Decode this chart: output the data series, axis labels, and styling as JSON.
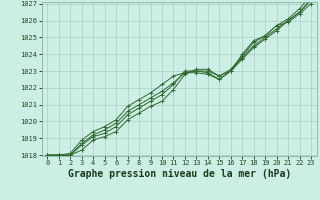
{
  "title": "Graphe pression niveau de la mer (hPa)",
  "x_hours": [
    0,
    1,
    2,
    3,
    4,
    5,
    6,
    7,
    8,
    9,
    10,
    11,
    12,
    13,
    14,
    15,
    16,
    17,
    18,
    19,
    20,
    21,
    22,
    23
  ],
  "line1": [
    1018.0,
    1018.0,
    1018.0,
    1018.6,
    1019.1,
    1019.3,
    1019.7,
    1020.4,
    1020.8,
    1021.2,
    1021.6,
    1022.2,
    1023.0,
    1023.0,
    1022.9,
    1022.5,
    1023.0,
    1023.8,
    1024.5,
    1025.0,
    1025.5,
    1026.0,
    1026.5,
    1027.2
  ],
  "line2": [
    1018.0,
    1018.0,
    1018.1,
    1018.9,
    1019.4,
    1019.7,
    1020.1,
    1020.9,
    1021.3,
    1021.7,
    1022.2,
    1022.7,
    1022.9,
    1023.0,
    1023.0,
    1022.7,
    1023.1,
    1023.9,
    1024.7,
    1025.1,
    1025.7,
    1026.1,
    1026.7,
    1027.5
  ],
  "line3": [
    1018.0,
    1018.0,
    1018.0,
    1018.3,
    1018.9,
    1019.1,
    1019.4,
    1020.1,
    1020.5,
    1020.9,
    1021.2,
    1021.9,
    1022.8,
    1023.1,
    1023.1,
    1022.7,
    1023.0,
    1024.0,
    1024.8,
    1025.1,
    1025.7,
    1025.9,
    1026.4,
    1027.0
  ],
  "line4": [
    1018.0,
    1018.0,
    1018.0,
    1018.7,
    1019.2,
    1019.5,
    1019.9,
    1020.6,
    1021.0,
    1021.4,
    1021.8,
    1022.3,
    1022.9,
    1022.9,
    1022.8,
    1022.5,
    1023.0,
    1023.7,
    1024.4,
    1024.9,
    1025.4,
    1026.0,
    1026.5,
    1027.3
  ],
  "line_color": "#2d6a2d",
  "bg_color": "#cceee4",
  "grid_color": "#aaccc4",
  "ylim_min": 1018,
  "ylim_max": 1027,
  "yticks": [
    1018,
    1019,
    1020,
    1021,
    1022,
    1023,
    1024,
    1025,
    1026,
    1027
  ],
  "xticks": [
    0,
    1,
    2,
    3,
    4,
    5,
    6,
    7,
    8,
    9,
    10,
    11,
    12,
    13,
    14,
    15,
    16,
    17,
    18,
    19,
    20,
    21,
    22,
    23
  ],
  "marker": "+",
  "linewidth": 0.7,
  "markersize": 3.0,
  "title_fontsize": 7.0,
  "tick_fontsize": 5.0
}
